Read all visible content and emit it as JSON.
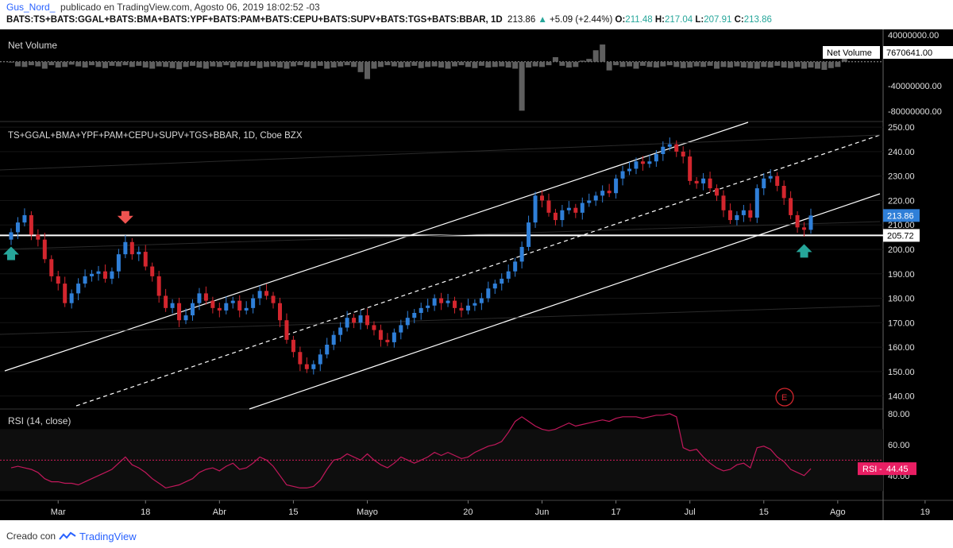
{
  "header": {
    "author": "Gus_Nord_",
    "published_text": "publicado en TradingView.com, Agosto 06, 2019 18:02:52 -03",
    "symbol": "BATS:TS+BATS:GGAL+BATS:BMA+BATS:YPF+BATS:PAM+BATS:CEPU+BATS:SUPV+BATS:TGS+BATS:BBAR, 1D",
    "last": "213.86",
    "change": "+5.09 (+2.44%)",
    "o_label": "O:",
    "o_val": "211.48",
    "h_label": "H:",
    "h_val": "217.04",
    "l_label": "L:",
    "l_val": "207.91",
    "c_label": "C:",
    "c_val": "213.86"
  },
  "footer": {
    "created_with": "Creado con",
    "brand": "TradingView"
  },
  "colors": {
    "background": "#000000",
    "up": "#2f7fd8",
    "down": "#d3262e",
    "rsi_line": "#c2185b",
    "rsi_badge": "#e91e63",
    "channel": "#ffffff",
    "volume": "#5f5f5f"
  },
  "chart_data": [
    {
      "type": "bar",
      "panel": "volume",
      "title": "Net Volume",
      "last_label": "Net Volume",
      "last_value": "7670641.00",
      "yticks": [
        "40000000.00",
        "0.00",
        "-40000000.00",
        "-80000000.00"
      ],
      "ylim": [
        -90000000,
        48000000
      ],
      "values": [
        0,
        -8,
        -9,
        -6,
        -8,
        -12,
        -6,
        -10,
        -9,
        -5,
        -8,
        -10,
        -6,
        -9,
        -11,
        -7,
        -8,
        -6,
        -9,
        -7,
        -10,
        -12,
        -8,
        -9,
        -11,
        -13,
        -9,
        -7,
        -10,
        -12,
        -8,
        -9,
        -6,
        -10,
        -8,
        -9,
        -7,
        -11,
        -9,
        -8,
        -10,
        -12,
        -8,
        -6,
        -9,
        -11,
        -7,
        -12,
        -10,
        -8,
        -6,
        -9,
        -18,
        -30,
        -12,
        -9,
        -6,
        -8,
        -10,
        -9,
        -7,
        -11,
        -9,
        -8,
        -10,
        -12,
        -8,
        -6,
        -9,
        -11,
        -7,
        -10,
        -9,
        -8,
        -10,
        -12,
        -85,
        -10,
        -8,
        -9,
        -6,
        8,
        -7,
        -10,
        -9,
        2,
        5,
        20,
        30,
        -15,
        -6,
        -9,
        -8,
        -12,
        -7,
        -9,
        -10,
        -8,
        -6,
        -9,
        -11,
        -10,
        -8,
        -9,
        -7,
        -12,
        -9,
        -10,
        -8,
        -10,
        -11,
        -12,
        -9,
        -10,
        -7,
        -10,
        -11,
        -9,
        -12,
        -10,
        -12,
        -14,
        -11,
        -9,
        8
      ]
    },
    {
      "type": "candlestick",
      "panel": "price",
      "title": "TS+GGAL+BMA+YPF+PAM+CEPU+SUPV+TGS+BBAR, 1D, Cboe BZX",
      "ylim": [
        135,
        252
      ],
      "yticks": [
        "250.00",
        "240.00",
        "230.00",
        "220.00",
        "210.00",
        "200.00",
        "190.00",
        "180.00",
        "170.00",
        "160.00",
        "150.00",
        "140.00"
      ],
      "price_label": "213.86",
      "hline_label": "205.72",
      "hline_value": 205.72,
      "close": [
        207,
        211,
        214,
        206,
        204,
        196,
        189,
        186,
        178,
        182,
        186,
        189,
        190,
        191,
        188,
        191,
        198,
        203,
        198,
        199,
        193,
        189,
        181,
        176,
        178,
        171,
        173,
        178,
        182,
        179,
        176,
        175,
        178,
        179,
        175,
        176,
        180,
        183,
        181,
        178,
        171,
        163,
        158,
        153,
        151,
        153,
        157,
        161,
        165,
        168,
        172,
        170,
        173,
        169,
        167,
        163,
        162,
        166,
        169,
        172,
        174,
        176,
        177,
        180,
        178,
        179,
        176,
        175,
        177,
        178,
        180,
        184,
        186,
        188,
        191,
        195,
        201,
        211,
        222,
        220,
        215,
        212,
        216,
        217,
        215,
        219,
        220,
        222,
        224,
        223,
        229,
        232,
        233,
        236,
        235,
        236,
        239,
        242,
        243,
        240,
        238,
        228,
        227,
        229,
        225,
        222,
        216,
        212,
        214,
        216,
        213,
        225,
        229,
        230,
        226,
        221,
        214,
        209,
        208,
        213.86
      ],
      "events": [
        {
          "type": "sell",
          "index": 17
        },
        {
          "type": "buy",
          "index": 0
        },
        {
          "type": "buy",
          "index": 118
        }
      ],
      "earnings_marker": "E"
    },
    {
      "type": "line",
      "panel": "rsi",
      "title": "RSI (14, close)",
      "last_label": "RSI",
      "last_value": "44.45",
      "yticks": [
        "80.00",
        "60.00",
        "40.00"
      ],
      "ylim": [
        25,
        82
      ],
      "band": [
        30,
        70
      ],
      "midline": 50,
      "values": [
        45,
        46,
        45,
        44,
        42,
        38,
        36,
        36,
        35,
        35,
        34,
        36,
        38,
        40,
        42,
        44,
        48,
        52,
        47,
        45,
        42,
        38,
        35,
        32,
        33,
        34,
        36,
        38,
        42,
        44,
        45,
        43,
        46,
        48,
        44,
        45,
        48,
        52,
        50,
        46,
        40,
        34,
        33,
        32,
        32,
        33,
        37,
        44,
        50,
        51,
        54,
        52,
        50,
        54,
        50,
        47,
        45,
        48,
        52,
        50,
        48,
        50,
        52,
        55,
        53,
        55,
        53,
        51,
        52,
        55,
        57,
        59,
        60,
        62,
        68,
        75,
        78,
        75,
        72,
        70,
        69,
        70,
        72,
        74,
        72,
        73,
        74,
        75,
        76,
        75,
        77,
        78,
        78,
        78,
        77,
        78,
        79,
        79,
        80,
        78,
        58,
        56,
        57,
        52,
        48,
        45,
        43,
        44,
        47,
        48,
        45,
        58,
        59,
        57,
        52,
        49,
        44,
        42,
        40,
        44.45
      ],
      "xticks": [
        "Mar",
        "18",
        "Abr",
        "15",
        "Mayo",
        "20",
        "Jun",
        "17",
        "Jul",
        "15",
        "Ago",
        "19"
      ]
    }
  ]
}
